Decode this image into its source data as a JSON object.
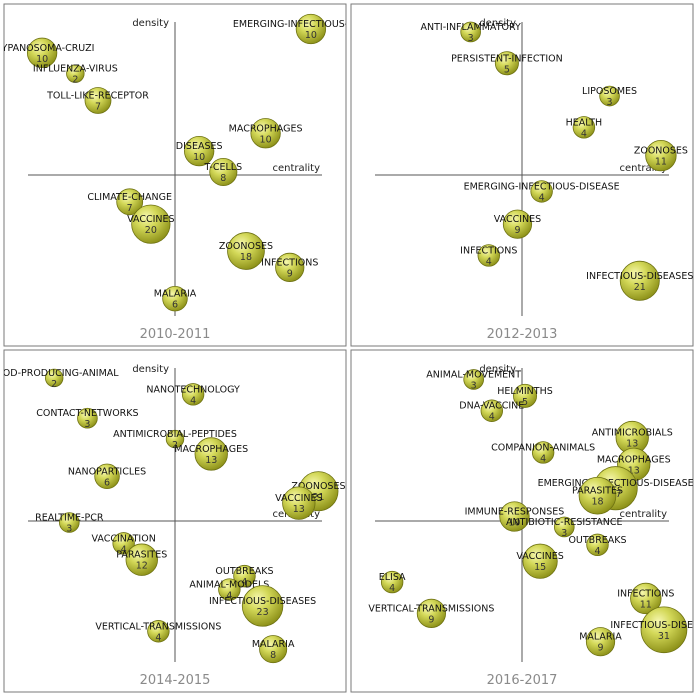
{
  "chart_data": [
    {
      "type": "scatter",
      "subtype": "strategic-diagram-bubble",
      "title": "2010-2011",
      "xlabel": "centrality",
      "ylabel": "density",
      "xlim": [
        -1,
        1
      ],
      "ylim": [
        -1,
        1
      ],
      "grid": false,
      "points": [
        {
          "label": "TRYPANOSOMA-CRUZI",
          "value": 10,
          "x": -0.88,
          "y": 0.82
        },
        {
          "label": "INFLUENZA-VIRUS",
          "value": 2,
          "x": -0.66,
          "y": 0.68
        },
        {
          "label": "TOLL-LIKE-RECEPTOR",
          "value": 7,
          "x": -0.51,
          "y": 0.5
        },
        {
          "label": "EMERGING-INFECTIOUS-DISEASE",
          "value": 10,
          "x": 0.9,
          "y": 0.98
        },
        {
          "label": "MACROPHAGES",
          "value": 10,
          "x": 0.6,
          "y": 0.28
        },
        {
          "label": "DISEASES",
          "value": 10,
          "x": 0.16,
          "y": 0.16
        },
        {
          "label": "T-CELLS",
          "value": 8,
          "x": 0.32,
          "y": 0.02
        },
        {
          "label": "CLIMATE-CHANGE",
          "value": 7,
          "x": -0.3,
          "y": -0.18
        },
        {
          "label": "VACCINES",
          "value": 20,
          "x": -0.16,
          "y": -0.33
        },
        {
          "label": "ZOONOSES",
          "value": 18,
          "x": 0.47,
          "y": -0.51
        },
        {
          "label": "INFECTIONS",
          "value": 9,
          "x": 0.76,
          "y": -0.62
        },
        {
          "label": "MALARIA",
          "value": 6,
          "x": 0.0,
          "y": -0.83
        }
      ]
    },
    {
      "type": "scatter",
      "subtype": "strategic-diagram-bubble",
      "title": "2012-2013",
      "xlabel": "centrality",
      "ylabel": "density",
      "xlim": [
        -1,
        1
      ],
      "ylim": [
        -1,
        1
      ],
      "grid": false,
      "points": [
        {
          "label": "ANTI-INFLAMMATORY",
          "value": 3,
          "x": -0.34,
          "y": 0.96
        },
        {
          "label": "PERSISTENT-INFECTION",
          "value": 5,
          "x": -0.1,
          "y": 0.75
        },
        {
          "label": "LIPOSOMES",
          "value": 3,
          "x": 0.58,
          "y": 0.53
        },
        {
          "label": "HEALTH",
          "value": 4,
          "x": 0.41,
          "y": 0.32
        },
        {
          "label": "ZOONOSES",
          "value": 11,
          "x": 0.92,
          "y": 0.13
        },
        {
          "label": "EMERGING-INFECTIOUS-DISEASE",
          "value": 4,
          "x": 0.13,
          "y": -0.11
        },
        {
          "label": "VACCINES",
          "value": 9,
          "x": -0.03,
          "y": -0.33
        },
        {
          "label": "INFECTIONS",
          "value": 4,
          "x": -0.22,
          "y": -0.54
        },
        {
          "label": "INFECTIOUS-DISEASES",
          "value": 21,
          "x": 0.78,
          "y": -0.71
        }
      ]
    },
    {
      "type": "scatter",
      "subtype": "strategic-diagram-bubble",
      "title": "2014-2015",
      "xlabel": "centrality",
      "ylabel": "density",
      "xlim": [
        -1,
        1
      ],
      "ylim": [
        -1,
        1
      ],
      "grid": false,
      "points": [
        {
          "label": "FOOD-PRODUCING-ANIMAL",
          "value": 2,
          "x": -0.8,
          "y": 0.96
        },
        {
          "label": "NANOTECHNOLOGY",
          "value": 4,
          "x": 0.12,
          "y": 0.85
        },
        {
          "label": "CONTACT-NETWORKS",
          "value": 3,
          "x": -0.58,
          "y": 0.69
        },
        {
          "label": "ANTIMICROBIAL-PEPTIDES",
          "value": 2,
          "x": 0.0,
          "y": 0.55
        },
        {
          "label": "MACROPHAGES",
          "value": 13,
          "x": 0.24,
          "y": 0.45
        },
        {
          "label": "NANOPARTICLES",
          "value": 6,
          "x": -0.45,
          "y": 0.3
        },
        {
          "label": "ZOONOSES",
          "value": 21,
          "x": 0.95,
          "y": 0.2
        },
        {
          "label": "VACCINES",
          "value": 13,
          "x": 0.82,
          "y": 0.12
        },
        {
          "label": "REALTIME-PCR",
          "value": 3,
          "x": -0.7,
          "y": -0.01
        },
        {
          "label": "VACCINATION",
          "value": 4,
          "x": -0.34,
          "y": -0.15
        },
        {
          "label": "PARASITES",
          "value": 12,
          "x": -0.22,
          "y": -0.26
        },
        {
          "label": "OUTBREAKS",
          "value": 4,
          "x": 0.46,
          "y": -0.37
        },
        {
          "label": "ANIMAL-MODELS",
          "value": 4,
          "x": 0.36,
          "y": -0.46
        },
        {
          "label": "INFECTIOUS-DISEASES",
          "value": 23,
          "x": 0.58,
          "y": -0.57
        },
        {
          "label": "VERTICAL-TRANSMISSIONS",
          "value": 4,
          "x": -0.11,
          "y": -0.74
        },
        {
          "label": "MALARIA",
          "value": 8,
          "x": 0.65,
          "y": -0.86
        }
      ]
    },
    {
      "type": "scatter",
      "subtype": "strategic-diagram-bubble",
      "title": "2016-2017",
      "xlabel": "centrality",
      "ylabel": "density",
      "xlim": [
        -1,
        1
      ],
      "ylim": [
        -1,
        1
      ],
      "grid": false,
      "points": [
        {
          "label": "ANIMAL-MOVEMENT",
          "value": 3,
          "x": -0.32,
          "y": 0.95
        },
        {
          "label": "HELMINTHS",
          "value": 5,
          "x": 0.02,
          "y": 0.84
        },
        {
          "label": "DNA-VACCINE",
          "value": 4,
          "x": -0.2,
          "y": 0.74
        },
        {
          "label": "ANTIMICROBIALS",
          "value": 13,
          "x": 0.73,
          "y": 0.56
        },
        {
          "label": "COMPANION-ANIMALS",
          "value": 4,
          "x": 0.14,
          "y": 0.46
        },
        {
          "label": "MACROPHAGES",
          "value": 13,
          "x": 0.74,
          "y": 0.38
        },
        {
          "label": "EMERGING-INFECTIOUS-DISEASE",
          "value": 27,
          "x": 0.62,
          "y": 0.22
        },
        {
          "label": "PARASITES",
          "value": 18,
          "x": 0.5,
          "y": 0.17
        },
        {
          "label": "IMMUNE-RESPONSES",
          "value": 10,
          "x": -0.05,
          "y": 0.03
        },
        {
          "label": "ANTIBIOTIC-RESISTANCE",
          "value": 3,
          "x": 0.28,
          "y": -0.04
        },
        {
          "label": "OUTBREAKS",
          "value": 4,
          "x": 0.5,
          "y": -0.16
        },
        {
          "label": "VACCINES",
          "value": 15,
          "x": 0.12,
          "y": -0.27
        },
        {
          "label": "ELISA",
          "value": 4,
          "x": -0.86,
          "y": -0.41
        },
        {
          "label": "VERTICAL-TRANSMISSIONS",
          "value": 9,
          "x": -0.6,
          "y": -0.62
        },
        {
          "label": "INFECTIONS",
          "value": 11,
          "x": 0.82,
          "y": -0.52
        },
        {
          "label": "INFECTIOUS-DISEASES",
          "value": 31,
          "x": 0.94,
          "y": -0.73
        },
        {
          "label": "MALARIA",
          "value": 9,
          "x": 0.52,
          "y": -0.81
        }
      ]
    }
  ]
}
